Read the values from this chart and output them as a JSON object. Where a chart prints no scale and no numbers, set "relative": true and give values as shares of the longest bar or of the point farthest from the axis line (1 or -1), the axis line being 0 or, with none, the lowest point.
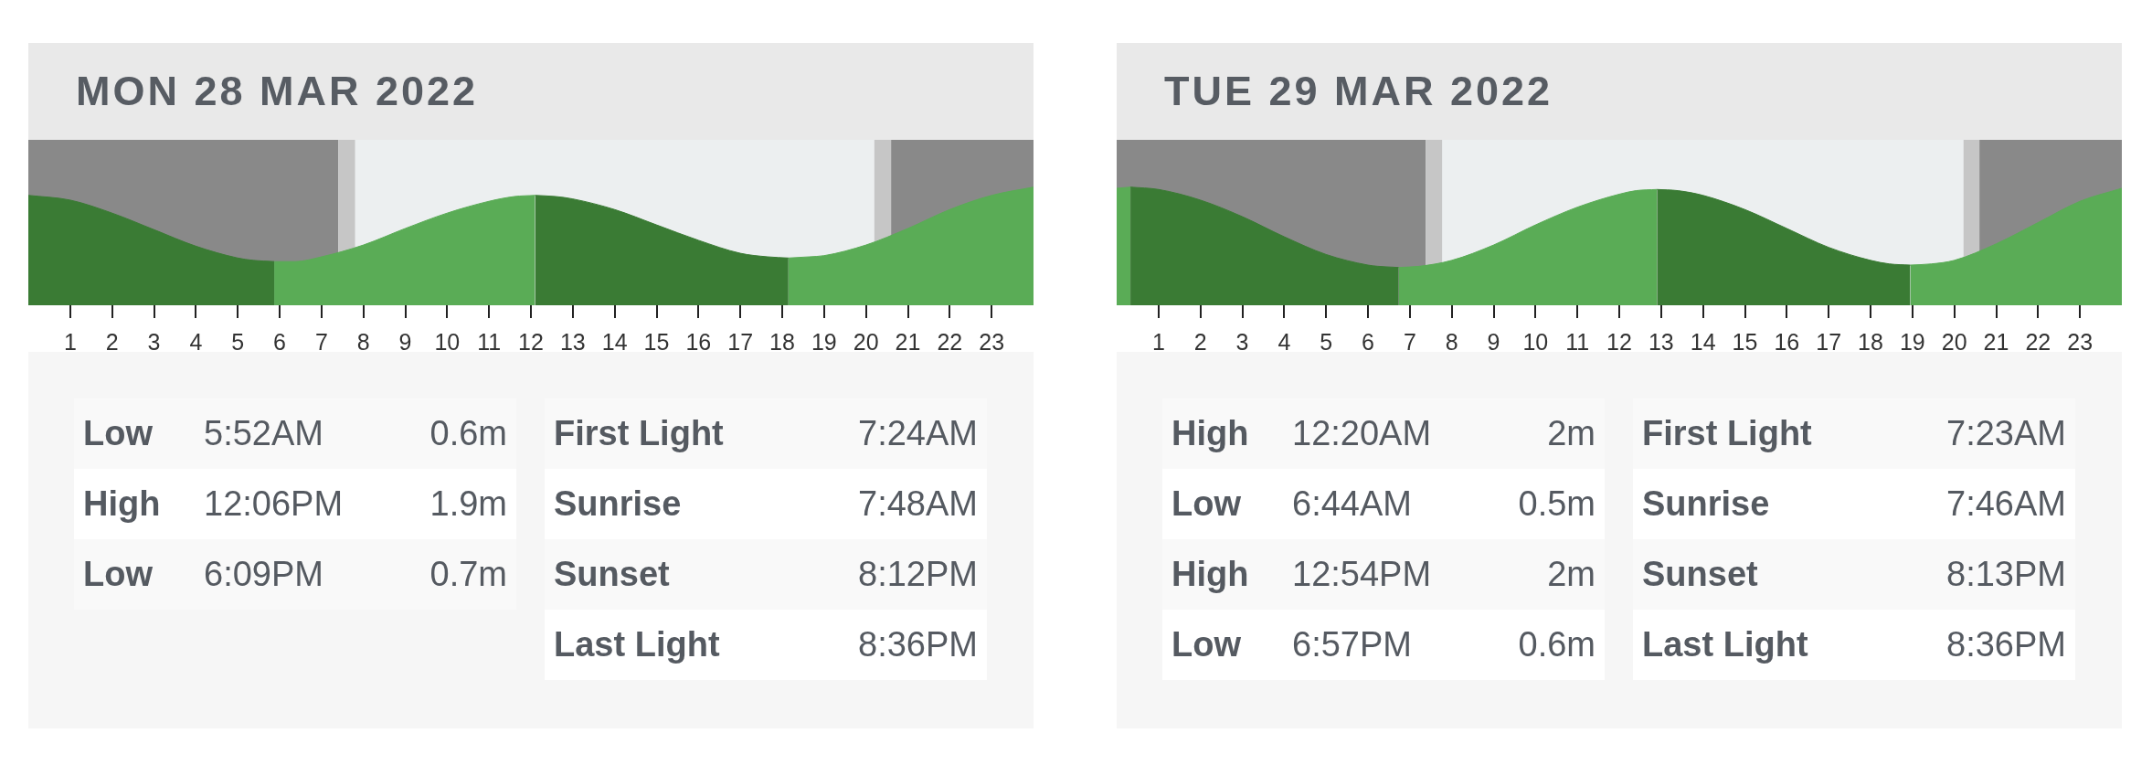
{
  "chart_data": [
    {
      "type": "area",
      "title": "MON 28 MAR 2022",
      "relative": true,
      "xlim": [
        0,
        24
      ],
      "xticks": [
        1,
        2,
        3,
        4,
        5,
        6,
        7,
        8,
        9,
        10,
        11,
        12,
        13,
        14,
        15,
        16,
        17,
        18,
        19,
        20,
        21,
        22,
        23
      ],
      "x": [
        0,
        1,
        2,
        3,
        4,
        5,
        5.37,
        5.87,
        6.37,
        7,
        8,
        9,
        10,
        11,
        11.6,
        12.1,
        12.6,
        13,
        14,
        15,
        16,
        17,
        17.65,
        18.15,
        18.65,
        19,
        20,
        21,
        22,
        23,
        24
      ],
      "series": [
        {
          "color": "#3a7b34",
          "values": [
            0.93,
            0.89,
            0.78,
            0.64,
            0.5,
            0.4,
            0.38,
            0.37,
            null,
            null,
            null,
            null,
            null,
            null,
            null,
            0.93,
            0.92,
            0.9,
            0.81,
            0.68,
            0.55,
            0.44,
            0.41,
            0.4,
            null,
            null,
            null,
            null,
            null,
            null,
            null
          ]
        },
        {
          "color": "#5aac56",
          "values": [
            null,
            null,
            null,
            null,
            null,
            null,
            null,
            0.37,
            0.37,
            0.41,
            0.51,
            0.65,
            0.78,
            0.88,
            0.92,
            0.93,
            null,
            null,
            null,
            null,
            null,
            null,
            null,
            0.4,
            0.41,
            0.42,
            0.51,
            0.65,
            0.81,
            0.93,
            1.0
          ]
        }
      ],
      "bands": [
        {
          "axis": "x",
          "from": 0,
          "to": 7.4,
          "color": "#898989"
        },
        {
          "axis": "x",
          "from": 7.4,
          "to": 7.8,
          "color": "#c6c6c6"
        },
        {
          "axis": "x",
          "from": 20.2,
          "to": 20.6,
          "color": "#c6c6c6"
        },
        {
          "axis": "x",
          "from": 20.6,
          "to": 24,
          "color": "#898989"
        }
      ]
    },
    {
      "type": "other",
      "y_categories": [
        "Low",
        "High",
        "Low"
      ],
      "cell_labels": [
        [
          "5:52AM",
          "0.6m"
        ],
        [
          "12:06PM",
          "1.9m"
        ],
        [
          "6:09PM",
          "0.7m"
        ]
      ]
    },
    {
      "type": "other",
      "y_categories": [
        "First Light",
        "Sunrise",
        "Sunset",
        "Last Light"
      ],
      "cell_labels": [
        [
          "7:24AM"
        ],
        [
          "7:48AM"
        ],
        [
          "8:12PM"
        ],
        [
          "8:36PM"
        ]
      ]
    },
    {
      "type": "area",
      "title": "TUE 29 MAR 2022",
      "relative": true,
      "xlim": [
        0,
        24
      ],
      "xticks": [
        1,
        2,
        3,
        4,
        5,
        6,
        7,
        8,
        9,
        10,
        11,
        12,
        13,
        14,
        15,
        16,
        17,
        18,
        19,
        20,
        21,
        22,
        23
      ],
      "x": [
        0,
        0.33,
        1,
        2,
        3,
        4,
        5,
        6,
        6.23,
        6.73,
        7.23,
        8,
        9,
        10,
        11,
        12,
        12.4,
        12.9,
        13.4,
        14,
        15,
        16,
        17,
        18,
        18.45,
        18.95,
        19.45,
        20,
        21,
        22,
        23,
        24
      ],
      "series": [
        {
          "color": "#3a7b34",
          "values": [
            null,
            1.0,
            0.98,
            0.89,
            0.75,
            0.58,
            0.43,
            0.34,
            0.33,
            0.32,
            null,
            null,
            null,
            null,
            null,
            null,
            null,
            0.98,
            0.97,
            0.93,
            0.81,
            0.65,
            0.49,
            0.38,
            0.35,
            0.34,
            null,
            null,
            null,
            null,
            null,
            null
          ]
        },
        {
          "color": "#5aac56",
          "values": [
            0.99,
            1.0,
            null,
            null,
            null,
            null,
            null,
            null,
            null,
            0.32,
            0.33,
            0.38,
            0.51,
            0.68,
            0.83,
            0.94,
            0.97,
            0.98,
            null,
            null,
            null,
            null,
            null,
            null,
            null,
            0.34,
            0.35,
            0.38,
            0.52,
            0.7,
            0.88,
            0.99
          ]
        }
      ],
      "bands": [
        {
          "axis": "x",
          "from": 0,
          "to": 7.38,
          "color": "#898989"
        },
        {
          "axis": "x",
          "from": 7.38,
          "to": 7.77,
          "color": "#c6c6c6"
        },
        {
          "axis": "x",
          "from": 20.22,
          "to": 20.6,
          "color": "#c6c6c6"
        },
        {
          "axis": "x",
          "from": 20.6,
          "to": 24,
          "color": "#898989"
        }
      ]
    },
    {
      "type": "other",
      "y_categories": [
        "High",
        "Low",
        "High",
        "Low"
      ],
      "cell_labels": [
        [
          "12:20AM",
          "2m"
        ],
        [
          "6:44AM",
          "0.5m"
        ],
        [
          "12:54PM",
          "2m"
        ],
        [
          "6:57PM",
          "0.6m"
        ]
      ]
    },
    {
      "type": "other",
      "y_categories": [
        "First Light",
        "Sunrise",
        "Sunset",
        "Last Light"
      ],
      "cell_labels": [
        [
          "7:23AM"
        ],
        [
          "7:46AM"
        ],
        [
          "8:13PM"
        ],
        [
          "8:36PM"
        ]
      ]
    }
  ]
}
